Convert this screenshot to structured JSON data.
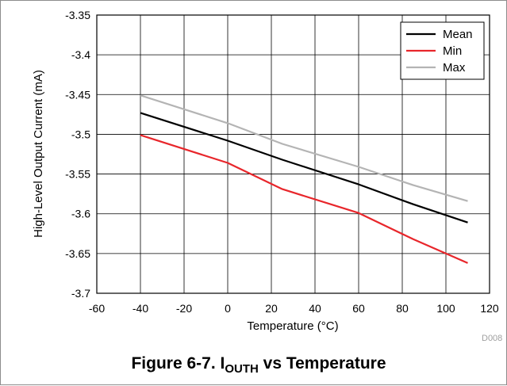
{
  "chart_data": {
    "type": "line",
    "xlabel": "Temperature (°C)",
    "ylabel": "High-Level Output Current (mA)",
    "xlim": [
      -60,
      120
    ],
    "ylim": [
      -3.7,
      -3.35
    ],
    "x_ticks": [
      -60,
      -40,
      -20,
      0,
      20,
      40,
      60,
      80,
      100,
      120
    ],
    "y_ticks": [
      -3.35,
      -3.4,
      -3.45,
      -3.5,
      -3.55,
      -3.6,
      -3.65,
      -3.7
    ],
    "x_tick_labels": [
      "-60",
      "-40",
      "-20",
      "0",
      "20",
      "40",
      "60",
      "80",
      "100",
      "120"
    ],
    "y_tick_labels": [
      "-3.35",
      "-3.4",
      "-3.45",
      "-3.5",
      "-3.55",
      "-3.6",
      "-3.65",
      "-3.7"
    ],
    "grid": true,
    "legend_position": "top-right",
    "series": [
      {
        "name": "Mean",
        "color": "#000000",
        "x": [
          -40,
          0,
          25,
          60,
          85,
          110
        ],
        "y": [
          -3.473,
          -3.508,
          -3.532,
          -3.563,
          -3.588,
          -3.611
        ]
      },
      {
        "name": "Min",
        "color": "#e8262b",
        "x": [
          -40,
          0,
          25,
          60,
          85,
          110
        ],
        "y": [
          -3.501,
          -3.536,
          -3.569,
          -3.599,
          -3.632,
          -3.662
        ]
      },
      {
        "name": "Max",
        "color": "#b4b4b4",
        "x": [
          -40,
          0,
          25,
          60,
          85,
          110
        ],
        "y": [
          -3.451,
          -3.486,
          -3.512,
          -3.541,
          -3.564,
          -3.584
        ]
      }
    ]
  },
  "code_label": "D008",
  "caption": {
    "prefix": "Figure 6-7. I",
    "subscript": "OUTH",
    "suffix": " vs Temperature"
  }
}
